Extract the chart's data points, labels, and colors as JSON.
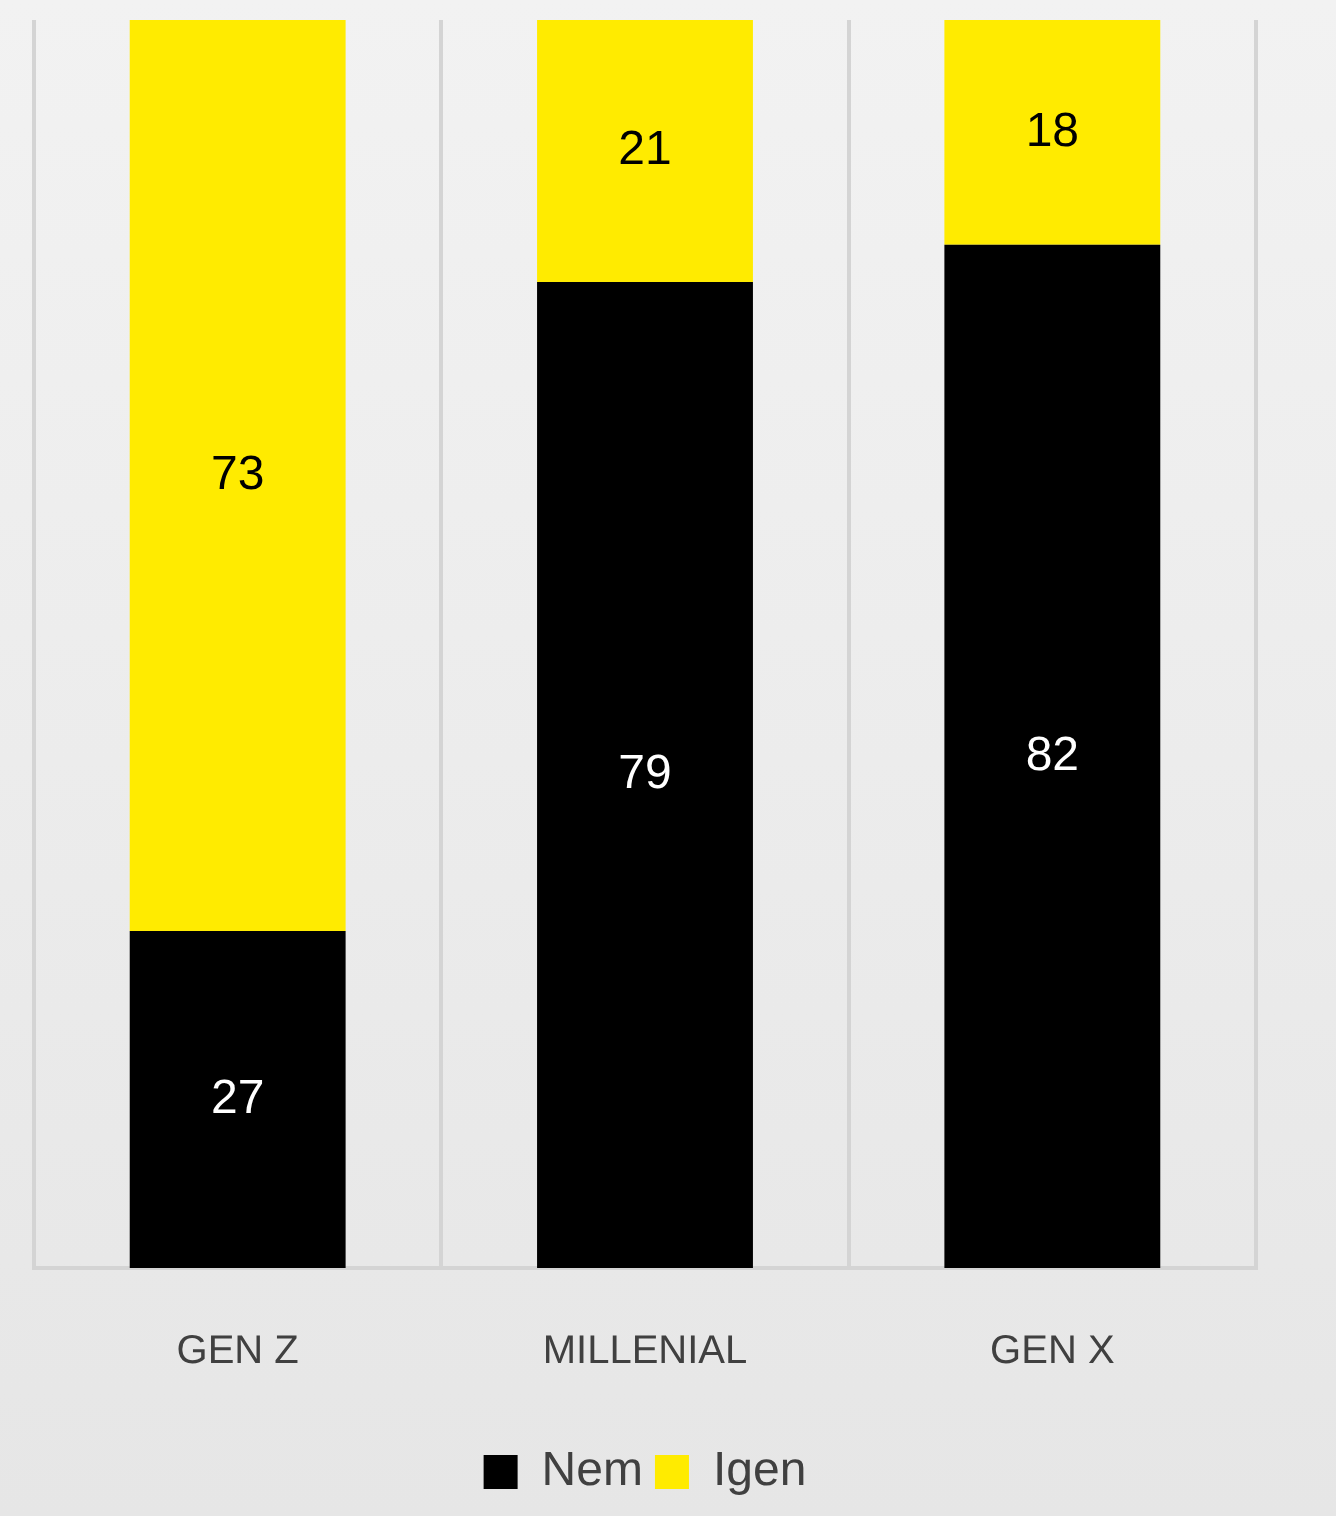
{
  "chart_data": {
    "type": "bar",
    "stacked": true,
    "categories": [
      "GEN Z",
      "MILLENIAL",
      "GEN X"
    ],
    "series": [
      {
        "name": "Nem",
        "color": "#000000",
        "values": [
          27,
          79,
          82
        ]
      },
      {
        "name": "Igen",
        "color": "#ffeb00",
        "values": [
          73,
          21,
          18
        ]
      }
    ],
    "ylim": [
      0,
      100
    ],
    "tick_labels": "x",
    "grid": "x",
    "legend": "bottom",
    "data_labels": true
  }
}
